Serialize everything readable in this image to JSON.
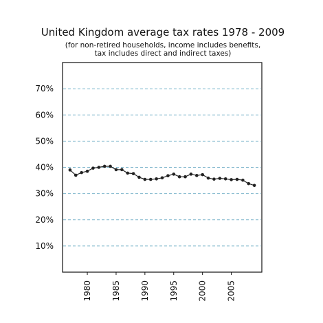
{
  "chart_data": {
    "type": "line",
    "title": "United Kingdom average tax rates 1978 - 2009",
    "subtitle_lines": [
      "(for non-retired households, income includes benefits,",
      "tax includes direct and indirect taxes)"
    ],
    "xlabel": "",
    "ylabel": "",
    "xlim": [
      1975.7,
      2010.3
    ],
    "ylim": [
      0,
      80
    ],
    "x_ticks": [
      1980,
      1985,
      1990,
      1995,
      2000,
      2005
    ],
    "y_ticks": [
      10,
      20,
      30,
      40,
      50,
      60,
      70
    ],
    "y_tick_labels": [
      "10%",
      "20%",
      "30%",
      "40%",
      "50%",
      "60%",
      "70%"
    ],
    "grid": "horizontal dashed",
    "series": [
      {
        "color": "#222222",
        "x": [
          1977,
          1978,
          1979,
          1980,
          1981,
          1982,
          1983,
          1984,
          1985,
          1986,
          1987,
          1988,
          1989,
          1990,
          1991,
          1992,
          1993,
          1994,
          1995,
          1996,
          1997,
          1998,
          1999,
          2000,
          2001,
          2002,
          2003,
          2004,
          2005,
          2006,
          2007,
          2008,
          2009
        ],
        "values": [
          39.0,
          37.0,
          38.0,
          38.5,
          39.7,
          40.0,
          40.4,
          40.4,
          39.1,
          39.1,
          37.8,
          37.6,
          36.2,
          35.4,
          35.4,
          35.6,
          36.0,
          36.8,
          37.4,
          36.4,
          36.4,
          37.4,
          36.9,
          37.2,
          35.9,
          35.5,
          35.8,
          35.6,
          35.3,
          35.4,
          35.1,
          33.8,
          33.1
        ]
      }
    ]
  }
}
